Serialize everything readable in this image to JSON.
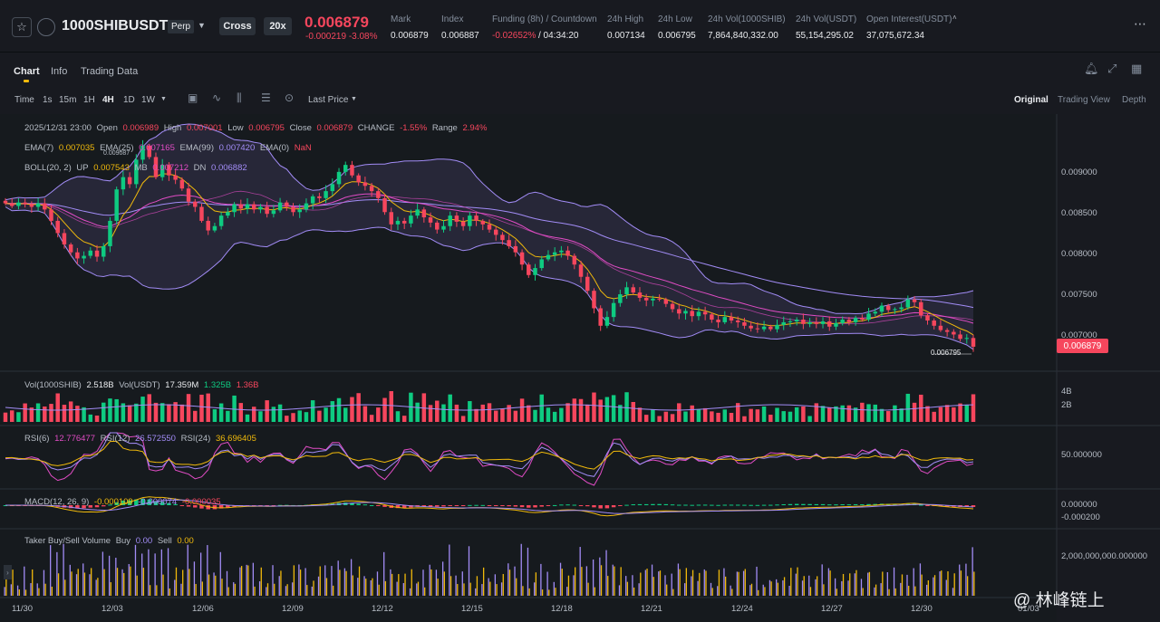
{
  "header": {
    "symbol": "1000SHIBUSDT",
    "contract_type": "Perp",
    "margin_mode": "Cross",
    "leverage": "20x",
    "last_price": "0.006879",
    "change": "-0.000219 -3.08%",
    "stats": [
      {
        "label": "Mark",
        "value": "0.006879"
      },
      {
        "label": "Index",
        "value": "0.006887"
      },
      {
        "label": "Funding (8h) / Countdown",
        "value": "-0.02652%",
        "value2": "/ 04:34:20"
      },
      {
        "label": "24h High",
        "value": "0.007134"
      },
      {
        "label": "24h Low",
        "value": "0.006795"
      },
      {
        "label": "24h Vol(1000SHIB)",
        "value": "7,864,840,332.00"
      },
      {
        "label": "24h Vol(USDT)",
        "value": "55,154,295.02"
      },
      {
        "label": "Open Interest(USDT)",
        "value": "37,075,672.34"
      }
    ],
    "more": "⋯"
  },
  "tabs": [
    "Chart",
    "Info",
    "Trading Data"
  ],
  "toolbar": {
    "intervals": [
      "Time",
      "1s",
      "15m",
      "1H",
      "4H",
      "1D",
      "1W"
    ],
    "active_interval": "4H",
    "price_type": "Last Price",
    "views": [
      "Original",
      "Trading View",
      "Depth"
    ],
    "active_view": "Original"
  },
  "legends": {
    "ohlc": {
      "date": "2025/12/31 23:00",
      "open_label": "Open",
      "open": "0.006989",
      "high_label": "High",
      "high": "0.007001",
      "low_label": "Low",
      "low": "0.006795",
      "close_label": "Close",
      "close": "0.006879",
      "change_label": "CHANGE",
      "change": "-1.55%",
      "range_label": "Range",
      "range": "2.94%"
    },
    "ema": {
      "ema7_label": "EMA(7)",
      "ema7": "0.007035",
      "ema25_label": "EMA(25)",
      "ema25": "0.007165",
      "ema99_label": "EMA(99)",
      "ema99": "0.007420",
      "ema0_label": "EMA(0)",
      "ema0": "NaN"
    },
    "boll": {
      "label": "BOLL(20, 2)",
      "up_label": "UP",
      "up": "0.007543",
      "mb_label": "MB",
      "mb": "0.007212",
      "dn_label": "DN",
      "dn": "0.006882"
    },
    "vol": {
      "label": "Vol(1000SHIB)",
      "v1": "2.518B",
      "label2": "Vol(USDT)",
      "v2": "17.359M",
      "v3": "1.325B",
      "v4": "1.36B"
    },
    "rsi": {
      "rsi6_label": "RSI(6)",
      "rsi6": "12.776477",
      "rsi12_label": "RSI(12)",
      "rsi12": "26.572550",
      "rsi24_label": "RSI(24)",
      "rsi24": "36.696405"
    },
    "macd": {
      "label": "MACD(12, 26, 9)",
      "v1": "-0.000109",
      "v2": "-0.000074",
      "v3": "-0.000035"
    },
    "taker": {
      "label": "Taker Buy/Sell Volume",
      "buy_label": "Buy",
      "buy": "0.00",
      "sell_label": "Sell",
      "sell": "0.00"
    }
  },
  "price_axis": [
    "0.009000",
    "0.008500",
    "0.008000",
    "0.007500",
    "0.007000"
  ],
  "vol_axis": [
    "4B",
    "2B"
  ],
  "rsi_axis": [
    "50.000000"
  ],
  "macd_axis": [
    "0.000000",
    "-0.000200"
  ],
  "taker_axis": [
    "2,000,000,000.000000"
  ],
  "x_axis": [
    "11/30",
    "12/03",
    "12/06",
    "12/09",
    "12/12",
    "12/15",
    "12/18",
    "12/21",
    "12/24",
    "12/27",
    "12/30",
    "01/03"
  ],
  "current_price_badge": "0.006879",
  "low_marker": "0.006795",
  "high_marker": "0.009087",
  "watermark": "@ 林峰链上",
  "colors": {
    "up": "#0ecb81",
    "down": "#f6465d",
    "accent": "#f0b90b",
    "bg": "#181a20"
  },
  "chart_data": {
    "type": "candlestick",
    "x_start": "11/30",
    "y_range": [
      0.0066,
      0.0095
    ],
    "closes": [
      0.00852,
      0.00849,
      0.00853,
      0.00851,
      0.00848,
      0.00852,
      0.00845,
      0.00832,
      0.00818,
      0.00805,
      0.00796,
      0.00789,
      0.00792,
      0.00798,
      0.00791,
      0.00803,
      0.00832,
      0.00868,
      0.00882,
      0.00874,
      0.00902,
      0.00918,
      0.00905,
      0.00882,
      0.00896,
      0.00884,
      0.00879,
      0.00869,
      0.00854,
      0.00848,
      0.00832,
      0.00821,
      0.00826,
      0.00838,
      0.00842,
      0.00851,
      0.00846,
      0.00851,
      0.00845,
      0.00848,
      0.0084,
      0.00844,
      0.00853,
      0.00848,
      0.00842,
      0.00845,
      0.00852,
      0.0086,
      0.00858,
      0.00866,
      0.00874,
      0.00888,
      0.00896,
      0.00884,
      0.00876,
      0.00872,
      0.00866,
      0.00858,
      0.00842,
      0.00828,
      0.00832,
      0.00829,
      0.00838,
      0.00845,
      0.00836,
      0.0083,
      0.00822,
      0.00826,
      0.00838,
      0.00831,
      0.00826,
      0.00838,
      0.00832,
      0.00828,
      0.00822,
      0.00816,
      0.0081,
      0.00803,
      0.00796,
      0.00782,
      0.0077,
      0.00778,
      0.00788,
      0.00793,
      0.00796,
      0.00798,
      0.00792,
      0.00782,
      0.00768,
      0.00752,
      0.00732,
      0.00712,
      0.00722,
      0.00738,
      0.00748,
      0.00756,
      0.0075,
      0.00744,
      0.00741,
      0.00743,
      0.00742,
      0.00737,
      0.00731,
      0.00726,
      0.00729,
      0.00723,
      0.00728,
      0.00725,
      0.00719,
      0.00716,
      0.00722,
      0.00718,
      0.00716,
      0.00712,
      0.00709,
      0.00708,
      0.00711,
      0.00708,
      0.00713,
      0.00716,
      0.00717,
      0.00719,
      0.00714,
      0.00716,
      0.00714,
      0.00717,
      0.00711,
      0.00715,
      0.00719,
      0.00716,
      0.00721,
      0.00719,
      0.00726,
      0.00728,
      0.00735,
      0.0073,
      0.00731,
      0.00733,
      0.00742,
      0.00739,
      0.00724,
      0.00718,
      0.00712,
      0.00707,
      0.00705,
      0.00702,
      0.00697,
      0.00698,
      0.00688
    ]
  }
}
